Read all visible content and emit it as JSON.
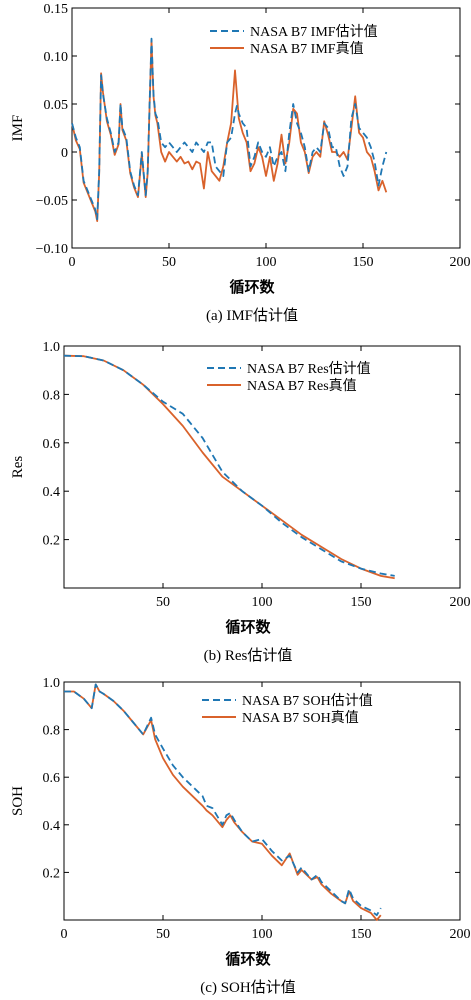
{
  "colors": {
    "estimate": "#1f77b4",
    "truth": "#d9622b",
    "axis": "#000000"
  },
  "chart_data": [
    {
      "type": "line",
      "caption": "(a) IMF估计值",
      "ylabel": "IMF",
      "xlabel": "循环数",
      "xlim": [
        0,
        200
      ],
      "ylim": [
        -0.1,
        0.15
      ],
      "xticks": [
        0,
        50,
        100,
        150,
        200
      ],
      "yticks": [
        -0.1,
        -0.05,
        0,
        0.05,
        0.1,
        0.15
      ],
      "ytick_labels": [
        "−0.10",
        "−0.05",
        "0",
        "0.05",
        "0.10",
        "0.15"
      ],
      "legend_position": "top-right",
      "series": [
        {
          "name": "NASA B7 IMF估计值",
          "style": "dashed",
          "color": "#1f77b4",
          "x": [
            0,
            2,
            4,
            6,
            8,
            10,
            12,
            13,
            14,
            15,
            16,
            18,
            20,
            22,
            24,
            25,
            26,
            28,
            30,
            32,
            34,
            36,
            38,
            39,
            40,
            41,
            42,
            43,
            44,
            46,
            48,
            50,
            52,
            54,
            56,
            58,
            60,
            62,
            64,
            66,
            68,
            70,
            72,
            74,
            76,
            78,
            80,
            82,
            84,
            85,
            86,
            88,
            90,
            92,
            94,
            96,
            98,
            100,
            102,
            104,
            106,
            108,
            110,
            112,
            114,
            116,
            118,
            120,
            122,
            124,
            126,
            128,
            130,
            132,
            134,
            136,
            138,
            140,
            142,
            144,
            146,
            148,
            150,
            152,
            154,
            156,
            158,
            160,
            162
          ],
          "y": [
            0.03,
            0.015,
            0.005,
            -0.03,
            -0.04,
            -0.05,
            -0.06,
            -0.07,
            -0.02,
            0.08,
            0.06,
            0.035,
            0.02,
            0.0,
            0.01,
            0.05,
            0.025,
            0.015,
            -0.02,
            -0.035,
            -0.045,
            0.0,
            -0.045,
            -0.02,
            0.05,
            0.118,
            0.06,
            0.04,
            0.035,
            0.01,
            0.005,
            0.01,
            0.005,
            0.0,
            0.005,
            0.01,
            0.005,
            0.0,
            0.01,
            0.005,
            0.0,
            0.01,
            0.01,
            -0.015,
            -0.02,
            -0.025,
            0.01,
            0.015,
            0.04,
            0.048,
            0.04,
            0.03,
            0.025,
            -0.015,
            -0.005,
            0.01,
            0.0,
            -0.005,
            0.005,
            -0.015,
            -0.005,
            0.0,
            -0.02,
            0.02,
            0.05,
            0.03,
            0.02,
            0.005,
            -0.02,
            0.0,
            0.005,
            0.0,
            0.03,
            0.025,
            0.005,
            0.005,
            -0.015,
            -0.025,
            -0.015,
            0.035,
            0.05,
            0.025,
            0.02,
            0.015,
            0.005,
            -0.01,
            -0.035,
            -0.015,
            0.0
          ]
        },
        {
          "name": "NASA B7 IMF真值",
          "style": "solid",
          "color": "#d9622b",
          "x": [
            0,
            2,
            4,
            6,
            8,
            10,
            12,
            13,
            14,
            15,
            16,
            18,
            20,
            22,
            24,
            25,
            26,
            28,
            30,
            32,
            34,
            36,
            38,
            39,
            40,
            41,
            42,
            43,
            44,
            46,
            48,
            50,
            52,
            54,
            56,
            58,
            60,
            62,
            64,
            66,
            68,
            70,
            72,
            74,
            76,
            78,
            80,
            82,
            84,
            85,
            86,
            88,
            90,
            92,
            94,
            96,
            98,
            100,
            102,
            104,
            106,
            108,
            110,
            112,
            114,
            116,
            118,
            120,
            122,
            124,
            126,
            128,
            130,
            132,
            134,
            136,
            138,
            140,
            142,
            144,
            146,
            148,
            150,
            152,
            154,
            156,
            158,
            160,
            162
          ],
          "y": [
            0.03,
            0.012,
            0.003,
            -0.032,
            -0.042,
            -0.052,
            -0.062,
            -0.072,
            -0.022,
            0.082,
            0.062,
            0.032,
            0.018,
            -0.003,
            0.008,
            0.05,
            0.023,
            0.012,
            -0.022,
            -0.037,
            -0.047,
            -0.002,
            -0.047,
            -0.022,
            0.048,
            0.116,
            0.058,
            0.038,
            0.03,
            0.0,
            -0.01,
            0.0,
            -0.005,
            -0.01,
            -0.005,
            -0.012,
            -0.01,
            -0.018,
            -0.01,
            -0.012,
            -0.038,
            0.0,
            -0.02,
            -0.025,
            -0.03,
            -0.015,
            0.01,
            0.03,
            0.085,
            0.06,
            0.035,
            0.02,
            0.01,
            -0.02,
            -0.012,
            0.005,
            -0.005,
            -0.025,
            -0.005,
            -0.03,
            -0.012,
            0.018,
            -0.012,
            0.01,
            0.045,
            0.04,
            0.01,
            0.0,
            -0.022,
            -0.005,
            0.0,
            -0.005,
            0.032,
            0.018,
            0.0,
            0.0,
            -0.005,
            0.0,
            -0.008,
            0.025,
            0.058,
            0.02,
            0.015,
            0.0,
            -0.005,
            -0.02,
            -0.04,
            -0.03,
            -0.042
          ]
        }
      ]
    },
    {
      "type": "line",
      "caption": "(b) Res估计值",
      "ylabel": "Res",
      "xlabel": "循环数",
      "xlim": [
        0,
        200
      ],
      "ylim": [
        0,
        1.0
      ],
      "xticks": [
        50,
        100,
        150,
        200
      ],
      "yticks": [
        0.2,
        0.4,
        0.6,
        0.8,
        1.0
      ],
      "ytick_labels": [
        "0.2",
        "0.4",
        "0.6",
        "0.8",
        "1.0"
      ],
      "legend_position": "top-right",
      "series": [
        {
          "name": "NASA B7 Res估计值",
          "style": "dashed",
          "color": "#1f77b4",
          "x": [
            0,
            10,
            20,
            30,
            40,
            50,
            60,
            70,
            80,
            90,
            100,
            110,
            120,
            130,
            140,
            150,
            160,
            167
          ],
          "y": [
            0.96,
            0.958,
            0.94,
            0.9,
            0.84,
            0.77,
            0.72,
            0.62,
            0.48,
            0.4,
            0.34,
            0.27,
            0.21,
            0.16,
            0.11,
            0.08,
            0.06,
            0.05
          ]
        },
        {
          "name": "NASA B7 Res真值",
          "style": "solid",
          "color": "#d9622b",
          "x": [
            0,
            10,
            20,
            30,
            40,
            50,
            60,
            70,
            80,
            90,
            100,
            110,
            120,
            130,
            140,
            150,
            160,
            167
          ],
          "y": [
            0.96,
            0.958,
            0.94,
            0.9,
            0.84,
            0.76,
            0.67,
            0.56,
            0.46,
            0.4,
            0.34,
            0.28,
            0.22,
            0.17,
            0.12,
            0.08,
            0.05,
            0.04
          ]
        }
      ]
    },
    {
      "type": "line",
      "caption": "(c) SOH估计值",
      "ylabel": "SOH",
      "xlabel": "循环数",
      "xlim": [
        0,
        200
      ],
      "ylim": [
        0,
        1.0
      ],
      "xticks": [
        0,
        50,
        100,
        150,
        200
      ],
      "yticks": [
        0.2,
        0.4,
        0.6,
        0.8,
        1.0
      ],
      "ytick_labels": [
        "0.2",
        "0.4",
        "0.6",
        "0.8",
        "1.0"
      ],
      "legend_position": "top-right",
      "series": [
        {
          "name": "NASA B7 SOH估计值",
          "style": "dashed",
          "color": "#1f77b4",
          "x": [
            0,
            5,
            10,
            14,
            16,
            18,
            20,
            25,
            30,
            35,
            40,
            44,
            46,
            50,
            55,
            60,
            70,
            72,
            75,
            80,
            82,
            84,
            86,
            90,
            95,
            100,
            105,
            110,
            114,
            118,
            120,
            125,
            128,
            130,
            135,
            140,
            142,
            144,
            146,
            150,
            155,
            158,
            160
          ],
          "y": [
            0.96,
            0.96,
            0.93,
            0.89,
            0.99,
            0.96,
            0.95,
            0.92,
            0.88,
            0.83,
            0.78,
            0.85,
            0.78,
            0.72,
            0.65,
            0.6,
            0.52,
            0.48,
            0.47,
            0.4,
            0.44,
            0.45,
            0.42,
            0.37,
            0.33,
            0.34,
            0.29,
            0.25,
            0.27,
            0.2,
            0.22,
            0.17,
            0.19,
            0.16,
            0.12,
            0.08,
            0.07,
            0.13,
            0.09,
            0.06,
            0.04,
            0.02,
            0.05
          ]
        },
        {
          "name": "NASA B7 SOH真值",
          "style": "solid",
          "color": "#d9622b",
          "x": [
            0,
            5,
            10,
            14,
            16,
            18,
            20,
            25,
            30,
            35,
            40,
            44,
            46,
            50,
            55,
            60,
            70,
            72,
            75,
            80,
            82,
            84,
            86,
            90,
            95,
            100,
            105,
            110,
            114,
            118,
            120,
            125,
            128,
            130,
            135,
            140,
            142,
            144,
            146,
            150,
            155,
            158,
            160
          ],
          "y": [
            0.96,
            0.96,
            0.93,
            0.89,
            0.99,
            0.96,
            0.95,
            0.92,
            0.88,
            0.83,
            0.78,
            0.84,
            0.76,
            0.68,
            0.61,
            0.56,
            0.48,
            0.46,
            0.44,
            0.39,
            0.42,
            0.44,
            0.41,
            0.37,
            0.33,
            0.32,
            0.27,
            0.23,
            0.28,
            0.19,
            0.21,
            0.17,
            0.18,
            0.15,
            0.11,
            0.08,
            0.07,
            0.12,
            0.08,
            0.05,
            0.03,
            0.0,
            0.02
          ]
        }
      ]
    }
  ]
}
